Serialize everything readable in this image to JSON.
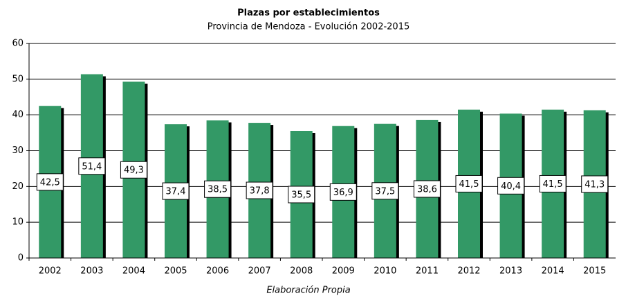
{
  "chart_data": {
    "type": "bar",
    "title": "Plazas por establecimientos",
    "subtitle": "Provincia de Mendoza - Evolución 2002-2015",
    "x_label": "Elaboración Propia",
    "categories": [
      "2002",
      "2003",
      "2004",
      "2005",
      "2006",
      "2007",
      "2008",
      "2009",
      "2010",
      "2011",
      "2012",
      "2013",
      "2014",
      "2015"
    ],
    "values": [
      42.5,
      51.4,
      49.3,
      37.4,
      38.5,
      37.8,
      35.5,
      36.9,
      37.5,
      38.6,
      41.5,
      40.4,
      41.5,
      41.3
    ],
    "value_labels": [
      "42,5",
      "51,4",
      "49,3",
      "37,4",
      "38,5",
      "37,8",
      "35,5",
      "36,9",
      "37,5",
      "38,6",
      "41,5",
      "40,4",
      "41,5",
      "41,3"
    ],
    "color": "#339966",
    "ylim": [
      0,
      60
    ],
    "yticks": [
      0,
      10,
      20,
      30,
      40,
      50,
      60
    ],
    "grid": true
  }
}
